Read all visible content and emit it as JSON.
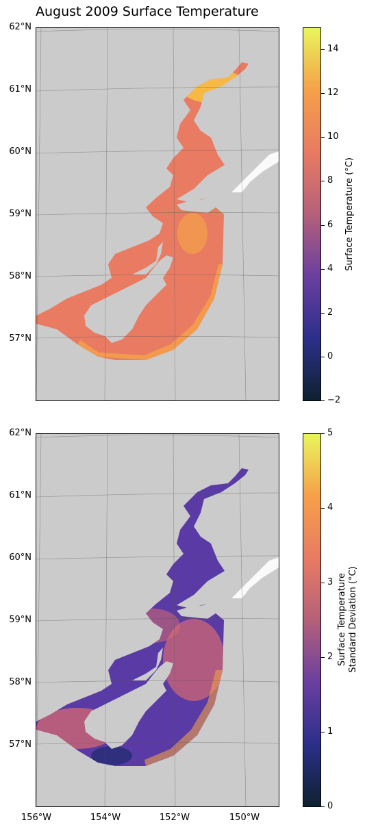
{
  "title": "August 2009 Surface Temperature",
  "latitude_labels": [
    "62°N",
    "61°N",
    "60°N",
    "59°N",
    "58°N",
    "57°N"
  ],
  "longitude_labels": [
    "156°W",
    "154°W",
    "152°W",
    "150°W"
  ],
  "colors": {
    "land": "#cbcbcb",
    "gridline": "#5a5a5a",
    "mean_ocean": "#e87b62",
    "mean_warm": "#f4a24a",
    "mean_hot": "#f9c440",
    "sd_ocean": "#5a3aa4",
    "sd_warm": "#d66a70",
    "sd_hot": "#f0a048"
  },
  "chart_data": [
    {
      "type": "heatmap",
      "panel": "top",
      "variable": "Surface Temperature (°C)",
      "colorbar_label": "Surface Temperature (°C)",
      "colorbar_range": [
        -2,
        15
      ],
      "colorbar_ticks": [
        -2,
        0,
        2,
        4,
        6,
        8,
        10,
        12,
        14
      ],
      "colormap": [
        "#0f2130",
        "#2c2f8a",
        "#6a3fa0",
        "#b5607a",
        "#e87b62",
        "#f6a04a",
        "#e9f55c"
      ],
      "typical_value": 9,
      "warm_spots": [
        {
          "area": "upper inlet",
          "value": 13
        }
      ],
      "lat_range": [
        56,
        62
      ],
      "lon_range": [
        -156,
        -149
      ]
    },
    {
      "type": "heatmap",
      "panel": "bottom",
      "variable": "Surface Temperature Standard Deviation (°C)",
      "colorbar_label": [
        "Surface Temperature",
        "Standard Deviation (°C)"
      ],
      "colorbar_range": [
        0,
        5
      ],
      "colorbar_ticks": [
        0,
        1,
        2,
        3,
        4,
        5
      ],
      "colormap": [
        "#0f2130",
        "#2c2f8a",
        "#6a3fa0",
        "#b5607a",
        "#e87b62",
        "#f6a04a",
        "#e9f55c"
      ],
      "typical_value": 1.2,
      "lat_range": [
        56,
        62
      ],
      "lon_range": [
        -156,
        -149
      ]
    }
  ]
}
